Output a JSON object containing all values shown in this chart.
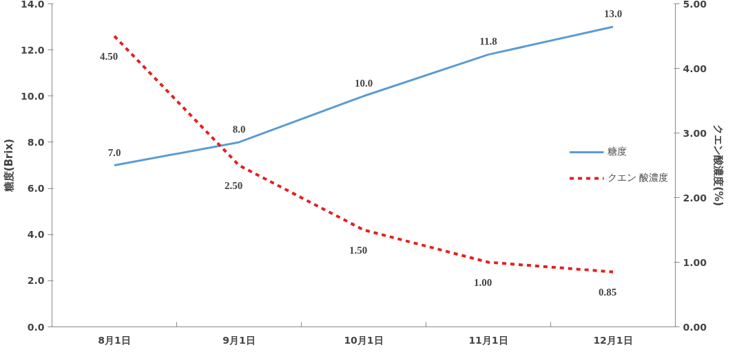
{
  "chart_data": {
    "type": "line",
    "categories": [
      "8月1日",
      "9月1日",
      "10月1日",
      "11月1日",
      "12月1日"
    ],
    "ylabel": "糖度(Brix)",
    "y2label": "クエン酸濃度(%)",
    "ylim": [
      0,
      14
    ],
    "yticks": [
      {
        "value": 0,
        "label": "0.0"
      },
      {
        "value": 2,
        "label": "2.0"
      },
      {
        "value": 4,
        "label": "4.0"
      },
      {
        "value": 6,
        "label": "6.0"
      },
      {
        "value": 8,
        "label": "8.0"
      },
      {
        "value": 10,
        "label": "10.0"
      },
      {
        "value": 12,
        "label": "12.0"
      },
      {
        "value": 14,
        "label": "14.0"
      }
    ],
    "y2lim": [
      0,
      5
    ],
    "y2ticks": [
      {
        "value": 0,
        "label": "0.00"
      },
      {
        "value": 1,
        "label": "1.00"
      },
      {
        "value": 2,
        "label": "2.00"
      },
      {
        "value": 3,
        "label": "3.00"
      },
      {
        "value": 4,
        "label": "4.00"
      },
      {
        "value": 5,
        "label": "5.00"
      }
    ],
    "grid": false,
    "legend": "right",
    "series": [
      {
        "name": "糖度",
        "color": "#5b9bd5",
        "line_style": "solid",
        "values": [
          7.0,
          8.0,
          10.0,
          11.8,
          13.0
        ],
        "value_labels": [
          "7.0",
          "8.0",
          "10.0",
          "11.8",
          "13.0"
        ]
      },
      {
        "name": "クエン 酸濃度",
        "color": "#e32020",
        "line_style": "dashed",
        "axis": "y2",
        "values": [
          4.5,
          2.5,
          1.5,
          1.0,
          0.85
        ],
        "value_labels": [
          "4.50",
          "2.50",
          "1.50",
          "1.00",
          "0.85"
        ]
      }
    ]
  }
}
